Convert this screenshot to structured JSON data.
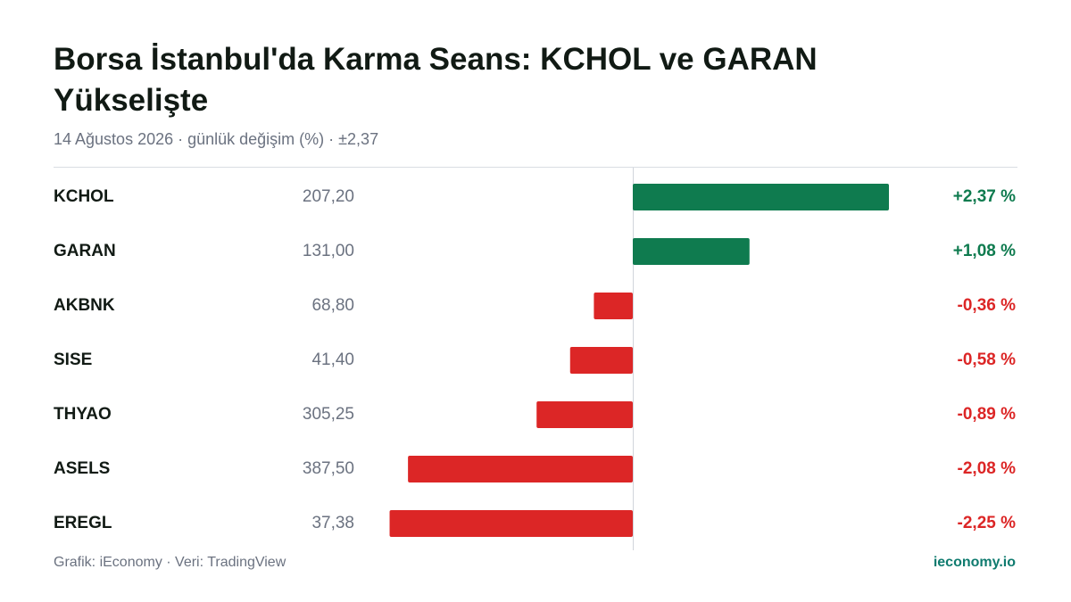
{
  "chart_data": {
    "type": "bar",
    "title": "Borsa İstanbul'da Karma Seans: KCHOL ve GARAN Yükselişte",
    "subtitle": "14 Ağustos 2026 · günlük değişim (%) · ±2,37",
    "categories": [
      "KCHOL",
      "GARAN",
      "AKBNK",
      "SISE",
      "THYAO",
      "ASELS",
      "EREGL"
    ],
    "prices": [
      "207,20",
      "131,00",
      "68,80",
      "41,40",
      "305,25",
      "387,50",
      "37,38"
    ],
    "values": [
      2.37,
      1.08,
      -0.36,
      -0.58,
      -0.89,
      -2.08,
      -2.25
    ],
    "value_labels": [
      "+2,37 %",
      "+1,08 %",
      "-0,36 %",
      "-0,58 %",
      "-0,89 %",
      "-2,08 %",
      "-2,25 %"
    ],
    "xlim": [
      -2.37,
      2.37
    ],
    "positive_color": "#0f7b4f",
    "negative_color": "#dc2626",
    "source": "Grafik: iEconomy · Veri: TradingView",
    "brand": "ieconomy.io"
  }
}
